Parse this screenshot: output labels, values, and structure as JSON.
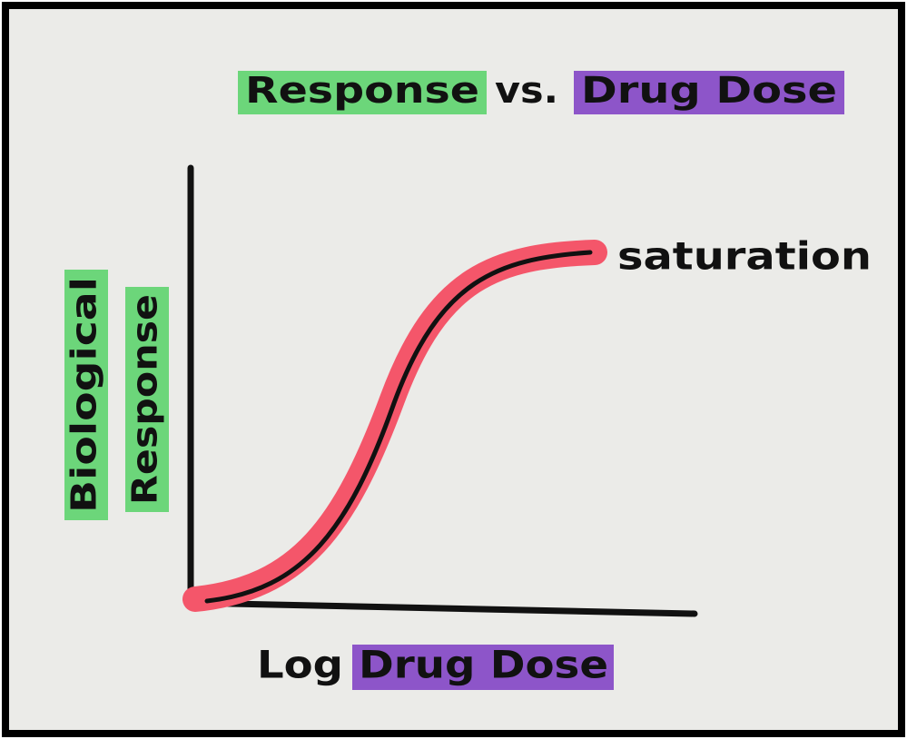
{
  "title": {
    "parts": [
      "Response",
      "vs.",
      "Drug Dose"
    ]
  },
  "y_axis_label": [
    "Biological",
    "Response"
  ],
  "x_axis_label": [
    "Log",
    "Drug Dose"
  ],
  "annotation": "saturation"
}
